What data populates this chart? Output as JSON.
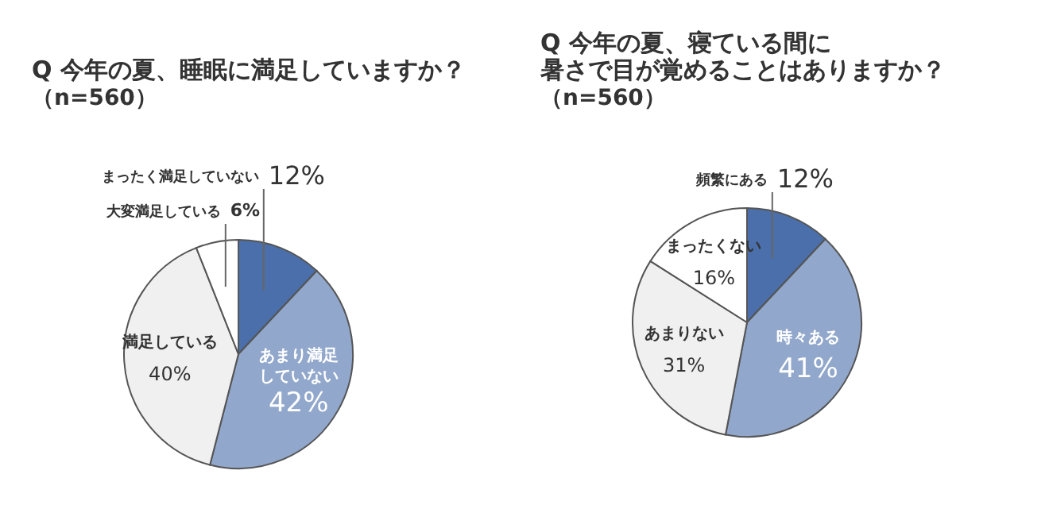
{
  "chart_data": [
    {
      "type": "pie",
      "title": "Q 今年の夏、睡眠に満足していますか？",
      "subtitle": "（n=560）",
      "categories": [
        "まったく満足していない",
        "あまり満足していない",
        "満足している",
        "大変満足している"
      ],
      "values": [
        12,
        42,
        40,
        6
      ],
      "value_labels": [
        "12%",
        "42%",
        "40%",
        "6%"
      ],
      "colors": [
        "#4a6faa",
        "#91a7cb",
        "#f0f0f0",
        "#ffffff"
      ]
    },
    {
      "type": "pie",
      "title": "Q 今年の夏、寝ている間に暑さで目が覚めることはありますか？",
      "subtitle": "（n=560）",
      "categories": [
        "頻繁にある",
        "時々ある",
        "あまりない",
        "まったくない"
      ],
      "values": [
        12,
        41,
        31,
        16
      ],
      "value_labels": [
        "12%",
        "41%",
        "31%",
        "16%"
      ],
      "colors": [
        "#4a6faa",
        "#91a7cb",
        "#f0f0f0",
        "#ffffff"
      ]
    }
  ]
}
